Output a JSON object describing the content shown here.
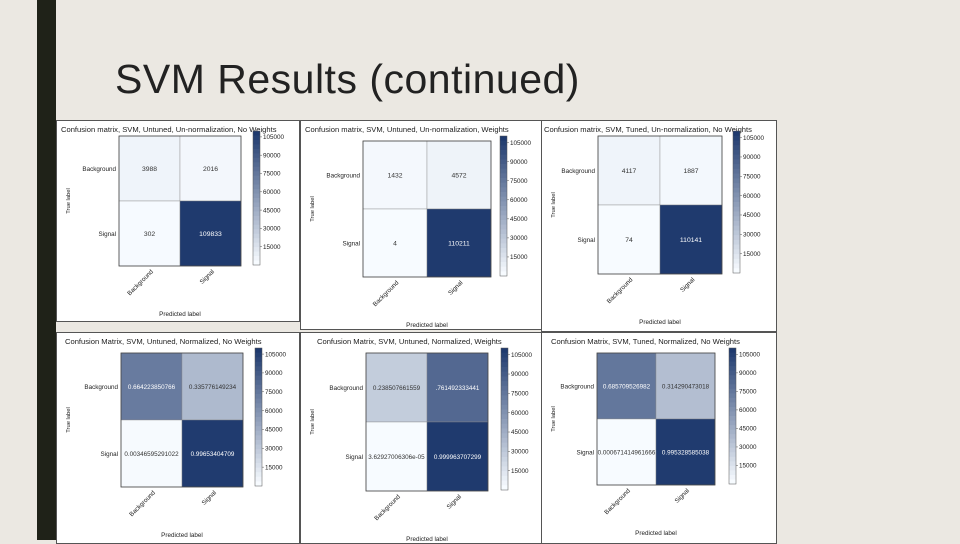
{
  "slide": {
    "title": "SVM Results (continued)",
    "accent_color": "#1f2218",
    "background_color": "#ebe8e2"
  },
  "colormap": {
    "low": "#f7fbff",
    "high": "#1f3a6e"
  },
  "chart_data": [
    {
      "type": "heatmap",
      "title": "Confusion matrix, SVM, Untuned, Un-normalization, No Weights",
      "xlabel": "Predicted label",
      "ylabel": "True label",
      "row_labels": [
        "Background",
        "Signal"
      ],
      "col_labels": [
        "Background",
        "Signal"
      ],
      "values": [
        [
          3988,
          2016
        ],
        [
          302,
          109833
        ]
      ],
      "cell_text": [
        [
          "3988",
          "2016"
        ],
        [
          "302",
          "109833"
        ]
      ],
      "colorbar": {
        "range": [
          0,
          109833
        ],
        "ticks": [
          "105000",
          "90000",
          "75000",
          "60000",
          "45000",
          "30000",
          "15000"
        ],
        "tick_values": [
          105000,
          90000,
          75000,
          60000,
          45000,
          30000,
          15000
        ]
      }
    },
    {
      "type": "heatmap",
      "title": "Confusion matrix, SVM, Untuned, Un-normalization, Weights",
      "xlabel": "Predicted label",
      "ylabel": "True label",
      "row_labels": [
        "Background",
        "Signal"
      ],
      "col_labels": [
        "Background",
        "Signal"
      ],
      "values": [
        [
          1432,
          4572
        ],
        [
          4,
          110211
        ]
      ],
      "cell_text": [
        [
          "1432",
          "4572"
        ],
        [
          "4",
          "110211"
        ]
      ],
      "colorbar": {
        "range": [
          0,
          110211
        ],
        "ticks": [
          "105000",
          "90000",
          "75000",
          "60000",
          "45000",
          "30000",
          "15000"
        ],
        "tick_values": [
          105000,
          90000,
          75000,
          60000,
          45000,
          30000,
          15000
        ]
      }
    },
    {
      "type": "heatmap",
      "title": "Confusion matrix, SVM, Tuned, Un-normalization, No Weights",
      "xlabel": "Predicted label",
      "ylabel": "True label",
      "row_labels": [
        "Background",
        "Signal"
      ],
      "col_labels": [
        "Background",
        "Signal"
      ],
      "values": [
        [
          4117,
          1887
        ],
        [
          74,
          110141
        ]
      ],
      "cell_text": [
        [
          "4117",
          "1887"
        ],
        [
          "74",
          "110141"
        ]
      ],
      "colorbar": {
        "range": [
          0,
          110141
        ],
        "ticks": [
          "105000",
          "90000",
          "75000",
          "60000",
          "45000",
          "30000",
          "15000"
        ],
        "tick_values": [
          105000,
          90000,
          75000,
          60000,
          45000,
          30000,
          15000
        ]
      }
    },
    {
      "type": "heatmap",
      "title": "Confusion Matrix, SVM, Untuned, Normalized, No Weights",
      "xlabel": "Predicted label",
      "ylabel": "True label",
      "row_labels": [
        "Background",
        "Signal"
      ],
      "col_labels": [
        "Background",
        "Signal"
      ],
      "values": [
        [
          0.664223850766,
          0.335776149234
        ],
        [
          0.00346595291022,
          0.99653404709
        ]
      ],
      "cell_text": [
        [
          "0.664223850766",
          "0.335776149234"
        ],
        [
          "0.00346595291022",
          "0.99653404709"
        ]
      ],
      "colorbar": {
        "range": [
          0,
          109833
        ],
        "ticks": [
          "105000",
          "90000",
          "75000",
          "60000",
          "45000",
          "30000",
          "15000"
        ],
        "tick_values": [
          105000,
          90000,
          75000,
          60000,
          45000,
          30000,
          15000
        ]
      }
    },
    {
      "type": "heatmap",
      "title": "Confusion Matrix, SVM, Untuned, Normalized, Weights",
      "xlabel": "Predicted label",
      "ylabel": "True label",
      "row_labels": [
        "Background",
        "Signal"
      ],
      "col_labels": [
        "Background",
        "Signal"
      ],
      "values": [
        [
          0.238507661559,
          0.761492333441
        ],
        [
          3.62927006306e-05,
          0.999963707299
        ]
      ],
      "cell_text": [
        [
          "0.238507661559",
          ".761492333441"
        ],
        [
          "3.62927006306e-05",
          "0.999963707299"
        ]
      ],
      "colorbar": {
        "range": [
          0,
          110211
        ],
        "ticks": [
          "105000",
          "90000",
          "75000",
          "60000",
          "45000",
          "30000",
          "15000"
        ],
        "tick_values": [
          105000,
          90000,
          75000,
          60000,
          45000,
          30000,
          15000
        ]
      }
    },
    {
      "type": "heatmap",
      "title": "Confusion Matrix, SVM, Tuned, Normalized, No Weights",
      "xlabel": "Predicted label",
      "ylabel": "True label",
      "row_labels": [
        "Background",
        "Signal"
      ],
      "col_labels": [
        "Background",
        "Signal"
      ],
      "values": [
        [
          0.685709526982,
          0.314290473018
        ],
        [
          0.000671414961666,
          0.995328585038
        ]
      ],
      "cell_text": [
        [
          "0.685709526982",
          "0.314290473018"
        ],
        [
          "0.000671414961666",
          "0.995328585038"
        ]
      ],
      "colorbar": {
        "range": [
          0,
          110141
        ],
        "ticks": [
          "105000",
          "90000",
          "75000",
          "60000",
          "45000",
          "30000",
          "15000"
        ],
        "tick_values": [
          105000,
          90000,
          75000,
          60000,
          45000,
          30000,
          15000
        ]
      }
    }
  ]
}
